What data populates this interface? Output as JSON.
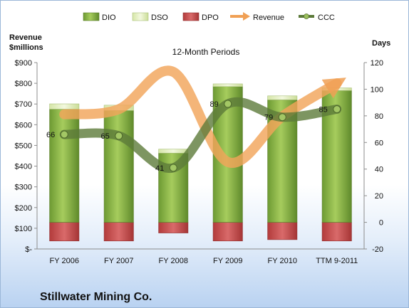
{
  "chart_data": {
    "type": "bar",
    "title": "12-Month Periods",
    "company": "Stillwater Mining Co.",
    "left_axis_title": [
      "Revenue",
      "$millions"
    ],
    "right_axis_title": "Days",
    "categories": [
      "FY 2006",
      "FY 2007",
      "FY 2008",
      "FY 2009",
      "FY 2010",
      "TTM 9-2011"
    ],
    "left_ticks": [
      "$-",
      "$100",
      "$200",
      "$300",
      "$400",
      "$500",
      "$600",
      "$700",
      "$800",
      "$900"
    ],
    "left_ylim": [
      0,
      900
    ],
    "right_ticks": [
      "-20",
      "0",
      "20",
      "40",
      "60",
      "80",
      "100",
      "120"
    ],
    "right_ylim": [
      -20,
      120
    ],
    "legend_position": "top",
    "grid": false,
    "series": [
      {
        "name": "DIO",
        "kind": "bar",
        "axis": "right",
        "values": [
          85,
          84,
          52,
          102,
          92,
          99
        ],
        "color": "#7ea541"
      },
      {
        "name": "DSO",
        "kind": "bar",
        "axis": "right",
        "values": [
          4,
          4,
          3,
          2,
          3,
          2
        ],
        "color": "#e3efc2"
      },
      {
        "name": "DPO",
        "kind": "bar",
        "axis": "right",
        "values": [
          -14,
          -14,
          -8,
          -14,
          -13,
          -14
        ],
        "color": "#c24a4a"
      },
      {
        "name": "Revenue",
        "kind": "line",
        "axis": "left",
        "values": [
          650,
          675,
          855,
          420,
          640,
          800
        ],
        "color": "#f2a55a"
      },
      {
        "name": "CCC",
        "kind": "line",
        "axis": "right",
        "values": [
          66,
          65,
          41,
          89,
          79,
          85
        ],
        "color": "#5c7a3a"
      }
    ],
    "data_labels": [
      "66",
      "65",
      "41",
      "89",
      "79",
      "85"
    ]
  }
}
